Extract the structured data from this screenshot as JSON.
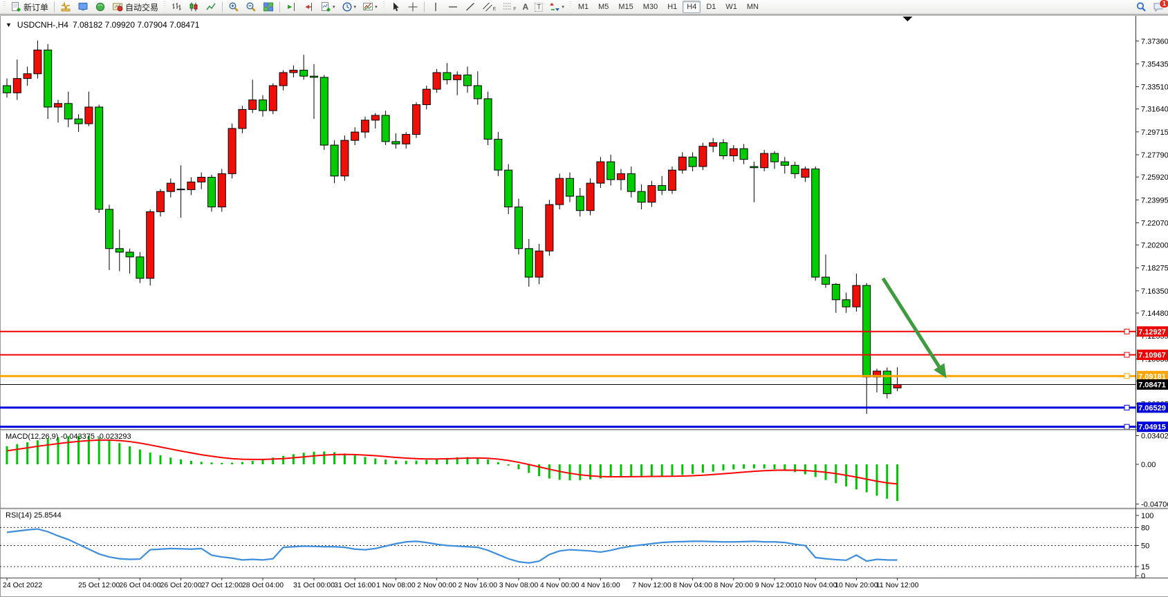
{
  "toolbar": {
    "new_order": "新订单",
    "autotrading": "自动交易",
    "timeframes": [
      "M1",
      "M5",
      "M15",
      "M30",
      "H1",
      "H4",
      "D1",
      "W1",
      "MN"
    ],
    "active_timeframe": "H4",
    "notification_count": "1",
    "glyphs": {
      "text_tool": "A",
      "label_tool": "T",
      "fibo_tool": "F",
      "channel_tool": "E",
      "dropdown": "▾",
      "collapse": "▼"
    }
  },
  "chart": {
    "symbol_title": "USDCNH-,H4",
    "ohlc_line": "7.08182 7.09920 7.07904 7.08471"
  },
  "chart_data": {
    "type": "candlestick",
    "symbol": "USDCNH-",
    "period": "H4",
    "last_bar": {
      "open": 7.08182,
      "high": 7.0992,
      "low": 7.07904,
      "close": 7.08471
    },
    "colors": {
      "bull": "#ee1008",
      "bear": "#00cc00",
      "wick": "#000000",
      "macd_hist": "#00c400",
      "macd_signal": "#ff0000",
      "rsi_line": "#3f8ede",
      "arrow": "#3f9b3f"
    },
    "price_axis_ticks": [
      "7.37360",
      "7.35435",
      "7.33510",
      "7.31640",
      "7.29715",
      "7.27790",
      "7.25920",
      "7.23995",
      "7.22070",
      "7.20200",
      "7.18275",
      "7.16350",
      "7.14480",
      "7.12555",
      "7.10630",
      "7.08760",
      "7.06835",
      "7.04910"
    ],
    "candles": [
      [
        7.336,
        7.342,
        7.326,
        7.33
      ],
      [
        7.33,
        7.358,
        7.324,
        7.342
      ],
      [
        7.342,
        7.352,
        7.336,
        7.346
      ],
      [
        7.346,
        7.374,
        7.342,
        7.366
      ],
      [
        7.366,
        7.371,
        7.308,
        7.318
      ],
      [
        7.318,
        7.324,
        7.305,
        7.321
      ],
      [
        7.321,
        7.331,
        7.301,
        7.308
      ],
      [
        7.308,
        7.312,
        7.297,
        7.304
      ],
      [
        7.304,
        7.331,
        7.302,
        7.318
      ],
      [
        7.318,
        7.32,
        7.229,
        7.232
      ],
      [
        7.232,
        7.236,
        7.181,
        7.199
      ],
      [
        7.199,
        7.215,
        7.18,
        7.196
      ],
      [
        7.196,
        7.199,
        7.178,
        7.192
      ],
      [
        7.192,
        7.196,
        7.17,
        7.174
      ],
      [
        7.174,
        7.232,
        7.168,
        7.23
      ],
      [
        7.23,
        7.249,
        7.226,
        7.247
      ],
      [
        7.247,
        7.258,
        7.242,
        7.254
      ],
      [
        7.249,
        7.269,
        7.225,
        7.2485
      ],
      [
        7.2485,
        7.259,
        7.244,
        7.255
      ],
      [
        7.255,
        7.263,
        7.249,
        7.259
      ],
      [
        7.259,
        7.261,
        7.23,
        7.234
      ],
      [
        7.234,
        7.266,
        7.23,
        7.262
      ],
      [
        7.262,
        7.304,
        7.258,
        7.3
      ],
      [
        7.3,
        7.319,
        7.296,
        7.316
      ],
      [
        7.316,
        7.341,
        7.313,
        7.324
      ],
      [
        7.324,
        7.328,
        7.31,
        7.315
      ],
      [
        7.315,
        7.338,
        7.312,
        7.336
      ],
      [
        7.336,
        7.349,
        7.332,
        7.347
      ],
      [
        7.347,
        7.353,
        7.343,
        7.349
      ],
      [
        7.349,
        7.362,
        7.341,
        7.344
      ],
      [
        7.344,
        7.354,
        7.308,
        7.343
      ],
      [
        7.343,
        7.345,
        7.282,
        7.286
      ],
      [
        7.286,
        7.29,
        7.254,
        7.26
      ],
      [
        7.26,
        7.294,
        7.256,
        7.29
      ],
      [
        7.29,
        7.301,
        7.286,
        7.297
      ],
      [
        7.297,
        7.31,
        7.292,
        7.307
      ],
      [
        7.307,
        7.313,
        7.3,
        7.311
      ],
      [
        7.311,
        7.315,
        7.286,
        7.289
      ],
      [
        7.289,
        7.296,
        7.283,
        7.287
      ],
      [
        7.287,
        7.297,
        7.283,
        7.295
      ],
      [
        7.295,
        7.322,
        7.292,
        7.32
      ],
      [
        7.32,
        7.336,
        7.316,
        7.333
      ],
      [
        7.333,
        7.35,
        7.33,
        7.347
      ],
      [
        7.347,
        7.355,
        7.337,
        7.341
      ],
      [
        7.341,
        7.348,
        7.328,
        7.345
      ],
      [
        7.345,
        7.352,
        7.33,
        7.336
      ],
      [
        7.336,
        7.348,
        7.32,
        7.325
      ],
      [
        7.325,
        7.331,
        7.286,
        7.291
      ],
      [
        7.291,
        7.297,
        7.26,
        7.265
      ],
      [
        7.265,
        7.27,
        7.228,
        7.234
      ],
      [
        7.234,
        7.241,
        7.194,
        7.199
      ],
      [
        7.199,
        7.207,
        7.167,
        7.175
      ],
      [
        7.175,
        7.203,
        7.169,
        7.197
      ],
      [
        7.197,
        7.24,
        7.193,
        7.236
      ],
      [
        7.236,
        7.262,
        7.232,
        7.258
      ],
      [
        7.258,
        7.263,
        7.238,
        7.243
      ],
      [
        7.243,
        7.25,
        7.226,
        7.231
      ],
      [
        7.231,
        7.258,
        7.227,
        7.254
      ],
      [
        7.254,
        7.276,
        7.25,
        7.272
      ],
      [
        7.272,
        7.278,
        7.252,
        7.257
      ],
      [
        7.257,
        7.266,
        7.248,
        7.262
      ],
      [
        7.262,
        7.268,
        7.242,
        7.247
      ],
      [
        7.247,
        7.253,
        7.232,
        7.238
      ],
      [
        7.238,
        7.256,
        7.234,
        7.252
      ],
      [
        7.252,
        7.26,
        7.244,
        7.248
      ],
      [
        7.248,
        7.268,
        7.245,
        7.265
      ],
      [
        7.265,
        7.28,
        7.262,
        7.276
      ],
      [
        7.276,
        7.28,
        7.264,
        7.268
      ],
      [
        7.268,
        7.288,
        7.265,
        7.285
      ],
      [
        7.285,
        7.292,
        7.28,
        7.288
      ],
      [
        7.288,
        7.291,
        7.274,
        7.277
      ],
      [
        7.277,
        7.286,
        7.272,
        7.283
      ],
      [
        7.283,
        7.287,
        7.27,
        7.274
      ],
      [
        7.268,
        7.272,
        7.238,
        7.267
      ],
      [
        7.267,
        7.282,
        7.264,
        7.279
      ],
      [
        7.279,
        7.281,
        7.266,
        7.272
      ],
      [
        7.272,
        7.276,
        7.262,
        7.269
      ],
      [
        7.269,
        7.272,
        7.258,
        7.262
      ],
      [
        7.259,
        7.268,
        7.255,
        7.266
      ],
      [
        7.266,
        7.268,
        7.172,
        7.175
      ],
      [
        7.175,
        7.194,
        7.166,
        7.169
      ],
      [
        7.169,
        7.17,
        7.145,
        7.156
      ],
      [
        7.156,
        7.162,
        7.145,
        7.15
      ],
      [
        7.15,
        7.178,
        7.146,
        7.168
      ],
      [
        7.168,
        7.17,
        7.06,
        7.091
      ],
      [
        7.091,
        7.098,
        7.078,
        7.096
      ],
      [
        7.096,
        7.099,
        7.073,
        7.077
      ],
      [
        7.08182,
        7.0992,
        7.07904,
        7.08471
      ]
    ],
    "time_axis": [
      {
        "bar": 0,
        "label": "24 Oct 2022"
      },
      {
        "bar": 9,
        "label": "25 Oct 12:00"
      },
      {
        "bar": 13,
        "label": "26 Oct 04:00"
      },
      {
        "bar": 17,
        "label": "26 Oct 20:00"
      },
      {
        "bar": 21,
        "label": "27 Oct 12:00"
      },
      {
        "bar": 25,
        "label": "28 Oct 04:00"
      },
      {
        "bar": 30,
        "label": "31 Oct 00:00"
      },
      {
        "bar": 34,
        "label": "31 Oct 16:00"
      },
      {
        "bar": 38,
        "label": "1 Nov 08:00"
      },
      {
        "bar": 42,
        "label": "2 Nov 00:00"
      },
      {
        "bar": 46,
        "label": "2 Nov 16:00"
      },
      {
        "bar": 50,
        "label": "3 Nov 08:00"
      },
      {
        "bar": 54,
        "label": "4 Nov 00:00"
      },
      {
        "bar": 58,
        "label": "4 Nov 16:00"
      },
      {
        "bar": 63,
        "label": "7 Nov 12:00"
      },
      {
        "bar": 67,
        "label": "8 Nov 04:00"
      },
      {
        "bar": 71,
        "label": "8 Nov 20:00"
      },
      {
        "bar": 75,
        "label": "9 Nov 12:00"
      },
      {
        "bar": 79,
        "label": "10 Nov 04:00"
      },
      {
        "bar": 83,
        "label": "10 Nov 20:00"
      },
      {
        "bar": 87,
        "label": "11 Nov 12:00"
      }
    ],
    "lines": [
      {
        "price": 7.12927,
        "label": "7.12927",
        "color": "#ee0000",
        "width": 2,
        "handle": true
      },
      {
        "price": 7.10967,
        "label": "7.10967",
        "color": "#ee0000",
        "width": 2,
        "handle": true
      },
      {
        "price": 7.09181,
        "label": "7.09181",
        "color": "#ffa500",
        "width": 3,
        "handle": true
      },
      {
        "price": 7.08471,
        "label": "7.08471",
        "color": "#000000",
        "width": 1,
        "handle": false
      },
      {
        "price": 7.06529,
        "label": "7.06529",
        "color": "#0000dd",
        "width": 3,
        "handle": true
      },
      {
        "price": 7.04915,
        "label": "7.04915",
        "color": "#0000dd",
        "width": 3,
        "handle": true
      }
    ],
    "indicators": {
      "macd": {
        "name": "MACD(12,26,9)",
        "value_main": "-0.043375",
        "value_signal": "-0.023293",
        "axis_labels": [
          "0.034024",
          "0.00",
          "-0.047061"
        ],
        "hist": [
          0.0215,
          0.024,
          0.0262,
          0.0285,
          0.0305,
          0.0322,
          0.0334,
          0.034,
          0.0338,
          0.0318,
          0.0288,
          0.0252,
          0.0214,
          0.0176,
          0.014,
          0.0108,
          0.008,
          0.0058,
          0.0042,
          0.003,
          0.0022,
          0.0018,
          0.002,
          0.0028,
          0.0042,
          0.006,
          0.008,
          0.01,
          0.012,
          0.0138,
          0.015,
          0.0152,
          0.0144,
          0.0128,
          0.0108,
          0.0088,
          0.007,
          0.0056,
          0.0046,
          0.0042,
          0.0044,
          0.0052,
          0.0064,
          0.0076,
          0.0084,
          0.0086,
          0.0078,
          0.0058,
          0.0026,
          -0.0014,
          -0.0058,
          -0.0102,
          -0.014,
          -0.0168,
          -0.0184,
          -0.019,
          -0.0188,
          -0.018,
          -0.0168,
          -0.0156,
          -0.0146,
          -0.014,
          -0.0138,
          -0.0138,
          -0.0138,
          -0.0134,
          -0.0126,
          -0.0114,
          -0.01,
          -0.0086,
          -0.0072,
          -0.006,
          -0.0052,
          -0.0048,
          -0.005,
          -0.0058,
          -0.0072,
          -0.0092,
          -0.0118,
          -0.015,
          -0.0186,
          -0.0224,
          -0.0262,
          -0.0298,
          -0.0332,
          -0.0372,
          -0.0408,
          -0.0434
        ],
        "signal": [
          0.016,
          0.0178,
          0.0196,
          0.0214,
          0.023,
          0.0246,
          0.026,
          0.0272,
          0.0282,
          0.0288,
          0.0288,
          0.0282,
          0.027,
          0.0252,
          0.023,
          0.0206,
          0.0182,
          0.0158,
          0.0136,
          0.0114,
          0.0096,
          0.008,
          0.0068,
          0.006,
          0.0058,
          0.0058,
          0.0062,
          0.0068,
          0.0078,
          0.0088,
          0.01,
          0.011,
          0.0116,
          0.0118,
          0.0116,
          0.011,
          0.0102,
          0.0092,
          0.0082,
          0.0074,
          0.0068,
          0.0064,
          0.0064,
          0.0066,
          0.007,
          0.0074,
          0.0076,
          0.0072,
          0.0062,
          0.0046,
          0.0024,
          -0.0002,
          -0.003,
          -0.0058,
          -0.0084,
          -0.0106,
          -0.0124,
          -0.0136,
          -0.0144,
          -0.0148,
          -0.0148,
          -0.0147,
          -0.0145,
          -0.0143,
          -0.0142,
          -0.0141,
          -0.0139,
          -0.0135,
          -0.0129,
          -0.0121,
          -0.0112,
          -0.0102,
          -0.0092,
          -0.0083,
          -0.0076,
          -0.0071,
          -0.0069,
          -0.007,
          -0.0074,
          -0.0082,
          -0.0094,
          -0.011,
          -0.013,
          -0.0152,
          -0.0176,
          -0.02,
          -0.022,
          -0.0233
        ]
      },
      "rsi": {
        "name": "RSI(14)",
        "value": "25.8544",
        "axis_labels": [
          "100",
          "80",
          "50",
          "15",
          "0"
        ],
        "levels": [
          80,
          50,
          15
        ],
        "series": [
          72,
          74,
          76,
          77.5,
          73,
          66,
          60,
          52,
          44,
          36,
          31,
          28,
          27,
          27.5,
          43,
          44,
          45,
          44.5,
          44,
          45,
          34,
          31,
          29,
          26,
          27,
          26,
          28,
          47,
          48,
          49,
          48.5,
          48,
          48,
          47,
          44,
          43,
          45,
          49,
          53,
          56,
          57,
          55,
          52,
          50,
          49,
          48,
          47,
          42,
          35,
          28,
          23,
          21,
          24,
          35,
          41,
          43,
          42,
          41,
          39,
          42,
          46,
          49,
          51,
          53,
          55,
          56,
          56.5,
          57,
          57,
          56.5,
          56,
          56,
          56.5,
          57,
          56,
          56,
          55,
          52,
          50,
          30,
          28,
          26.5,
          25.5,
          34,
          24,
          27,
          26,
          25.85
        ]
      }
    },
    "annotations": {
      "trend_arrow": {
        "from_bar": 85.6,
        "from_price": 7.174,
        "to_bar": 91.8,
        "to_price": 7.09
      },
      "shift_marker_bar": 88
    }
  }
}
